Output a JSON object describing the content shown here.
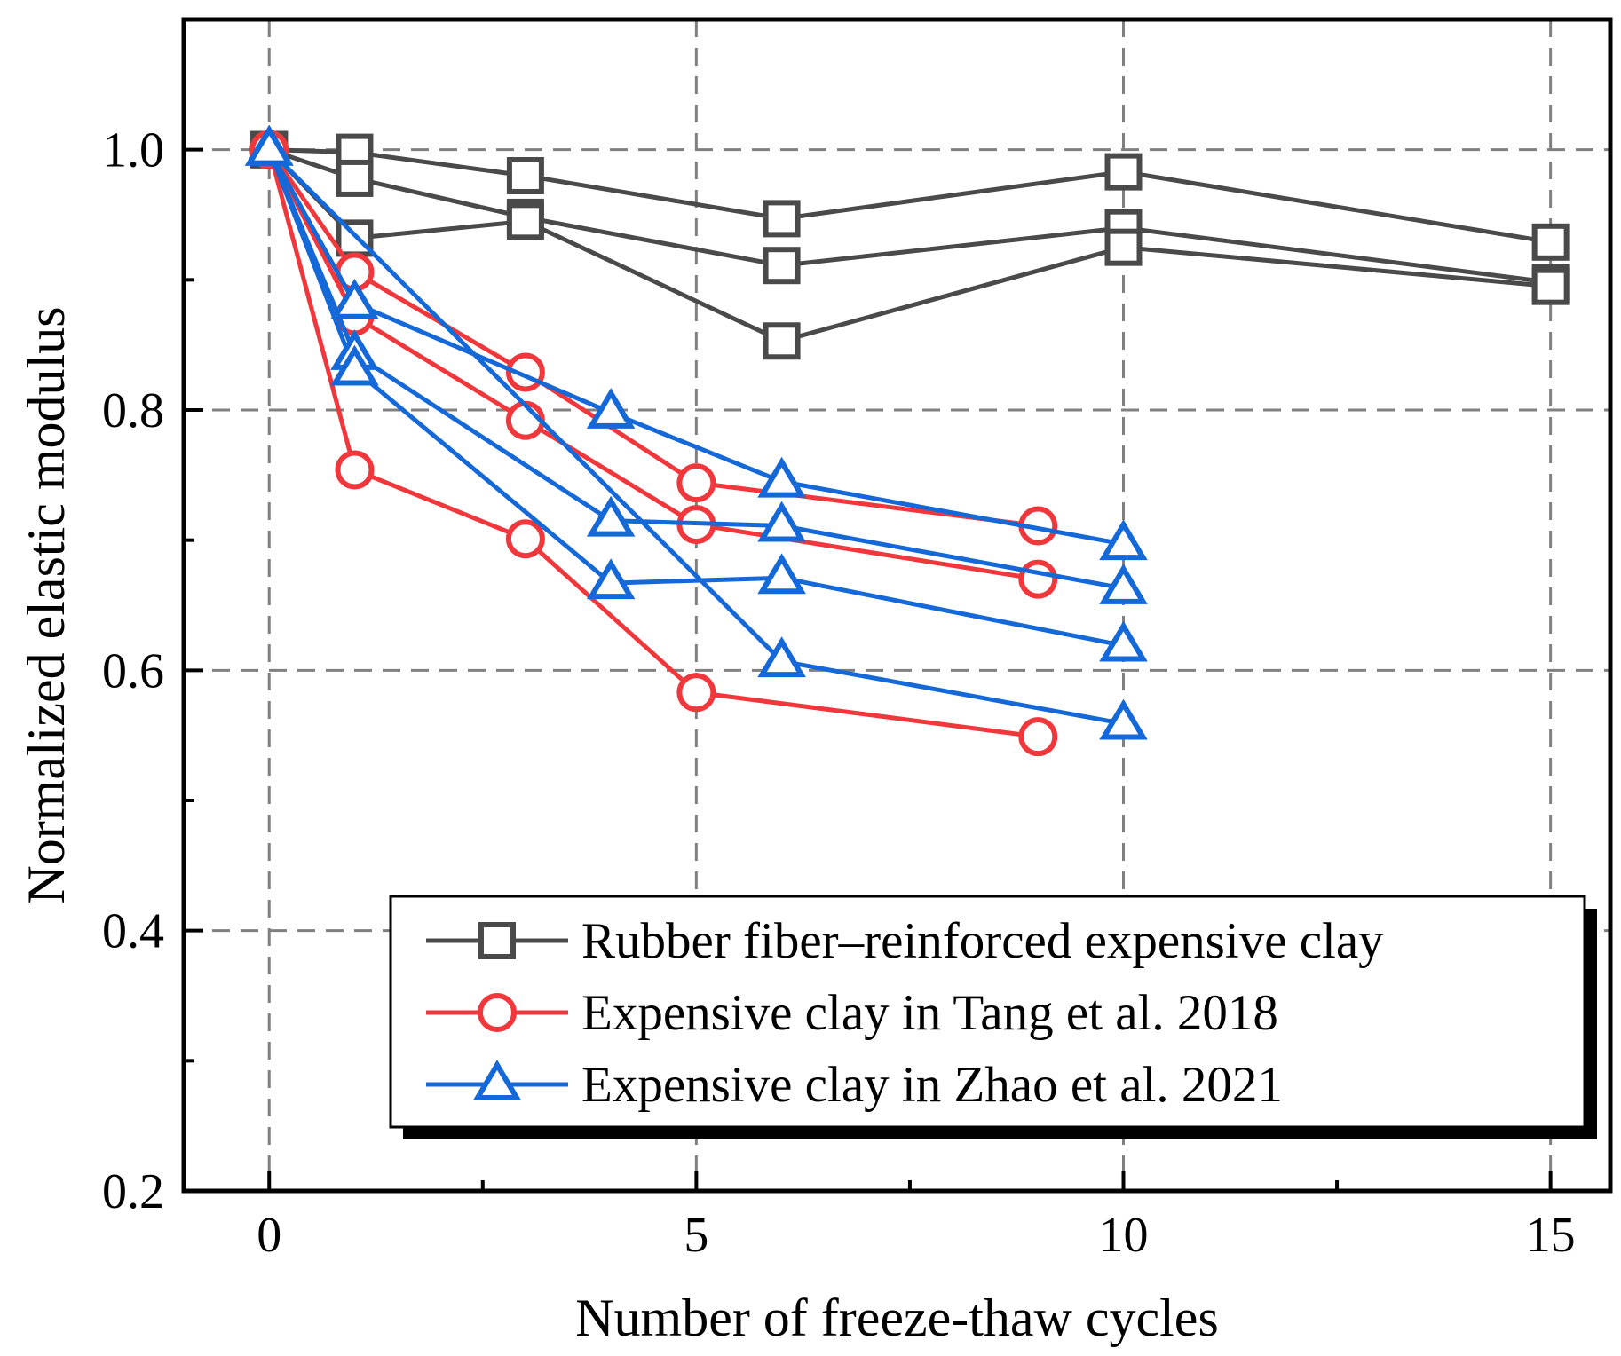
{
  "chart_data": {
    "type": "line",
    "title": "",
    "xlabel": "Number of freeze-thaw cycles",
    "ylabel": "Normalized elastic modulus",
    "xlim": [
      -1,
      15.7
    ],
    "ylim": [
      0.2,
      1.1
    ],
    "xticks": [
      0,
      5,
      10,
      15
    ],
    "xtick_labels": [
      "0",
      "5",
      "10",
      "15"
    ],
    "yticks": [
      0.2,
      0.4,
      0.6,
      0.8,
      1.0
    ],
    "ytick_labels": [
      "0.2",
      "0.4",
      "0.6",
      "0.8",
      "1.0"
    ],
    "grid": true,
    "legend_position": "bottom-right",
    "groups": [
      {
        "name": "Rubber fiber–reinforced expensive clay",
        "color": "#4a4a4a",
        "marker": "square",
        "series": [
          {
            "x": [
              0,
              1,
              3,
              6,
              10,
              15
            ],
            "y": [
              1.0,
              0.998,
              0.98,
              0.947,
              0.983,
              0.929
            ]
          },
          {
            "x": [
              0,
              1,
              3,
              6,
              10,
              15
            ],
            "y": [
              1.0,
              0.978,
              0.948,
              0.911,
              0.94,
              0.898
            ]
          },
          {
            "x": [
              0,
              1,
              3,
              6,
              10,
              15
            ],
            "y": [
              1.0,
              0.932,
              0.945,
              0.853,
              0.925,
              0.895
            ]
          }
        ]
      },
      {
        "name": "Expensive clay in Tang et al. 2018",
        "color": "#f0373c",
        "marker": "circle",
        "series": [
          {
            "x": [
              0,
              1,
              3,
              5,
              9
            ],
            "y": [
              1.0,
              0.906,
              0.829,
              0.744,
              0.711
            ]
          },
          {
            "x": [
              0,
              1,
              3,
              5,
              9
            ],
            "y": [
              1.0,
              0.872,
              0.792,
              0.712,
              0.67
            ]
          },
          {
            "x": [
              0,
              1,
              3,
              5,
              9
            ],
            "y": [
              1.0,
              0.754,
              0.701,
              0.583,
              0.549
            ]
          }
        ]
      },
      {
        "name": "Expensive clay in Zhao et al. 2021",
        "color": "#1468d8",
        "marker": "triangle",
        "series": [
          {
            "x": [
              0,
              1,
              4,
              6,
              10
            ],
            "y": [
              1.0,
              0.882,
              0.798,
              0.745,
              0.697
            ]
          },
          {
            "x": [
              0,
              1,
              4,
              6,
              10
            ],
            "y": [
              1.0,
              0.843,
              0.715,
              0.711,
              0.663
            ]
          },
          {
            "x": [
              0,
              1,
              4,
              6,
              10
            ],
            "y": [
              1.0,
              0.831,
              0.667,
              0.671,
              0.619
            ]
          },
          {
            "x": [
              0,
              6,
              10
            ],
            "y": [
              1.0,
              0.607,
              0.559
            ]
          }
        ]
      }
    ]
  }
}
